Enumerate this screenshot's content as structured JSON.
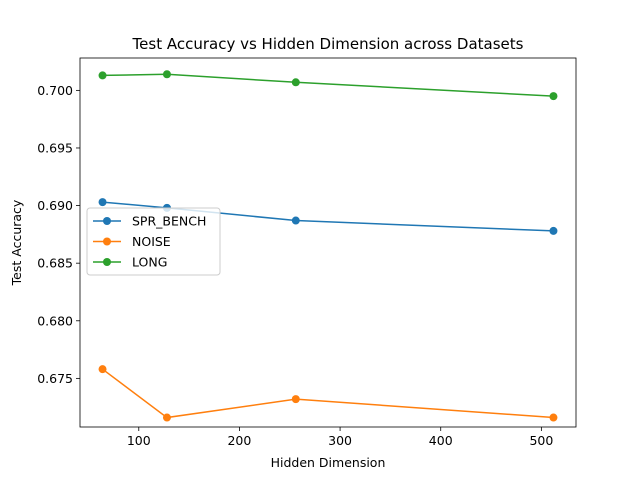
{
  "chart_data": {
    "type": "line",
    "title": "Test Accuracy vs Hidden Dimension across Datasets",
    "xlabel": "Hidden Dimension",
    "ylabel": "Test Accuracy",
    "xlim": [
      41.6,
      534.4
    ],
    "ylim": [
      0.67078,
      0.70281
    ],
    "xticks": [
      100,
      200,
      300,
      400,
      500
    ],
    "xtick_labels": [
      "100",
      "200",
      "300",
      "400",
      "500"
    ],
    "yticks": [
      0.675,
      0.68,
      0.685,
      0.69,
      0.695,
      0.7
    ],
    "ytick_labels": [
      "0.675",
      "0.680",
      "0.685",
      "0.690",
      "0.695",
      "0.700"
    ],
    "x": [
      64,
      128,
      256,
      512
    ],
    "series": [
      {
        "name": "SPR_BENCH",
        "color": "#1f77b4",
        "values": [
          0.6903,
          0.6898,
          0.6887,
          0.6878
        ]
      },
      {
        "name": "NOISE",
        "color": "#ff7f0e",
        "values": [
          0.6758,
          0.6716,
          0.6732,
          0.6716
        ]
      },
      {
        "name": "LONG",
        "color": "#2ca02c",
        "values": [
          0.7013,
          0.7014,
          0.7007,
          0.6995
        ]
      }
    ],
    "legend_position": "center-left",
    "grid": false
  }
}
